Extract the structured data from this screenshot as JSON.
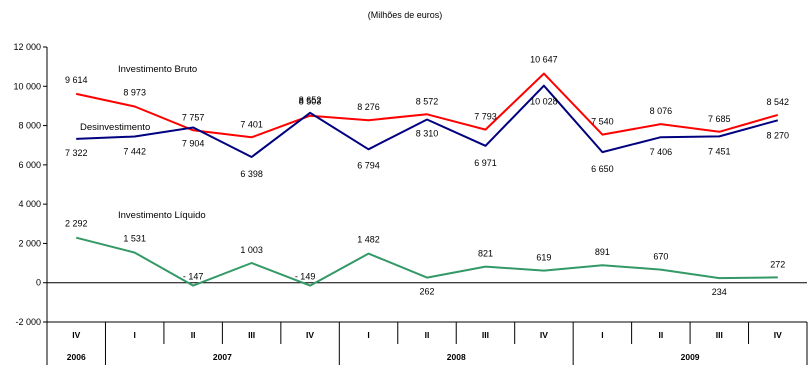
{
  "chart_data": {
    "type": "line",
    "subtitle": "(Milhões de euros)",
    "yticks": [
      "12 000",
      "10 000",
      "8 000",
      "6 000",
      "4 000",
      "2 000",
      "0",
      "-2 000"
    ],
    "ylim": [
      -2000,
      12000
    ],
    "grid": false,
    "categories": [
      "IV",
      "I",
      "II",
      "III",
      "IV",
      "I",
      "II",
      "III",
      "IV",
      "I",
      "II",
      "III",
      "IV"
    ],
    "years": [
      "2006",
      "2007",
      "2008",
      "2009"
    ],
    "series": [
      {
        "name": "Investimento Bruto",
        "color": "#ff0000",
        "values": [
          9614,
          8973,
          7757,
          7401,
          8503,
          8276,
          8572,
          7793,
          10647,
          7540,
          8076,
          7685,
          8542
        ],
        "labels": [
          "9 614",
          "8 973",
          "7 757",
          "7 401",
          "8 503",
          "8 276",
          "8 572",
          "7 793",
          "10 647",
          "7 540",
          "8 076",
          "7 685",
          "8 542"
        ]
      },
      {
        "name": "Desinvestimento",
        "color": "#000080",
        "values": [
          7322,
          7442,
          7904,
          6398,
          8652,
          6794,
          8310,
          6971,
          10028,
          6650,
          7406,
          7451,
          8270
        ],
        "labels": [
          "7 322",
          "7 442",
          "7 904",
          "6 398",
          "8 652",
          "6 794",
          "8 310",
          "6 971",
          "10 028",
          "6 650",
          "7 406",
          "7 451",
          "8 270"
        ]
      },
      {
        "name": "Investimento Líquido",
        "color": "#339966",
        "values": [
          2292,
          1531,
          -147,
          1003,
          -149,
          1482,
          262,
          821,
          619,
          891,
          670,
          234,
          272
        ],
        "labels": [
          "2 292",
          "1 531",
          "-   147",
          "1 003",
          "-   149",
          "1 482",
          "262",
          "821",
          "619",
          "891",
          "670",
          "234",
          "272"
        ]
      }
    ]
  }
}
